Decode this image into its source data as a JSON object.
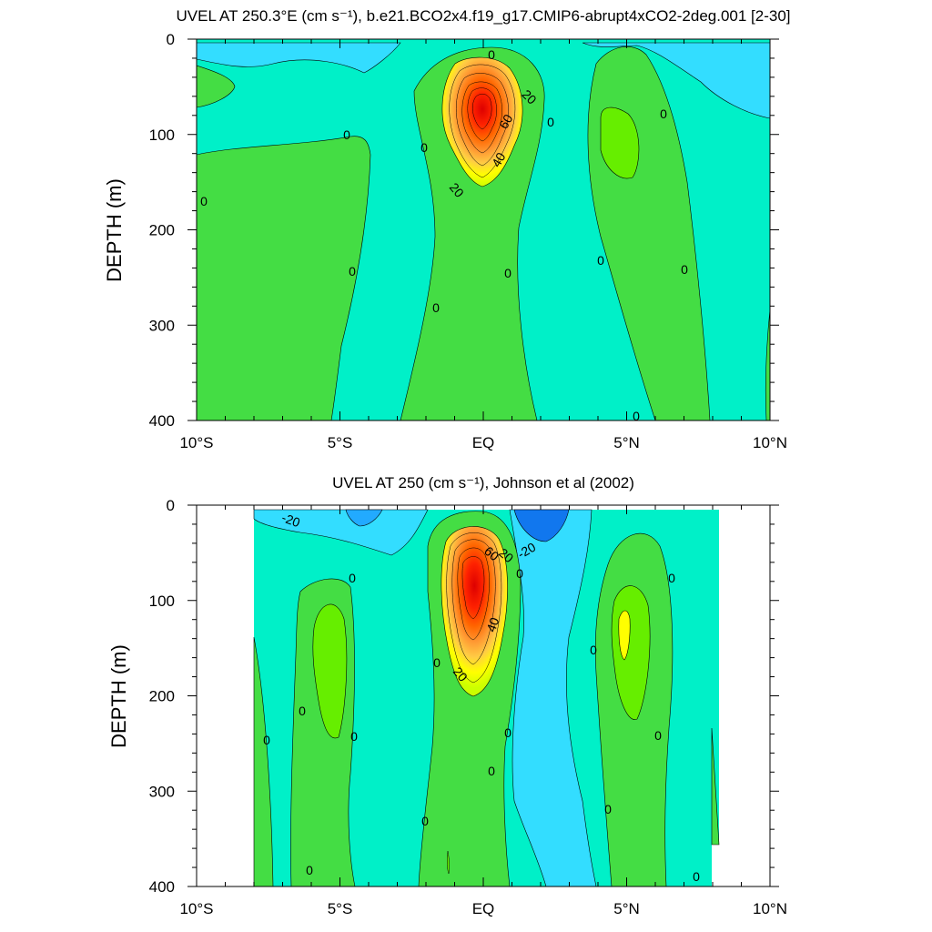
{
  "chart_data": [
    {
      "type": "contour",
      "title": "UVEL AT 250.3°E (cm s⁻¹), b.e21.BCO2x4.f19_g17.CMIP6-abrupt4xCO2-2deg.001 [2-30]",
      "ylabel": "DEPTH (m)",
      "xlabel": "",
      "xlim": [
        -10,
        10
      ],
      "ylim": [
        400,
        0
      ],
      "x_ticks": [
        {
          "value": -10,
          "label": "10°S"
        },
        {
          "value": -5,
          "label": "5°S"
        },
        {
          "value": 0,
          "label": "EQ"
        },
        {
          "value": 5,
          "label": "5°N"
        },
        {
          "value": 10,
          "label": "10°N"
        }
      ],
      "y_ticks": [
        {
          "value": 0,
          "label": "0"
        },
        {
          "value": 100,
          "label": "100"
        },
        {
          "value": 200,
          "label": "200"
        },
        {
          "value": 300,
          "label": "300"
        },
        {
          "value": 400,
          "label": "400"
        }
      ],
      "colors": {
        "negative_strong": "#33ddff",
        "negative_weak": "#00f0d0",
        "near_zero_positive": "#44dd44",
        "weak_positive": "#66ee00",
        "positive_20": "#ffff00",
        "positive_30": "#ffcc44",
        "positive_40": "#ff9933",
        "positive_60": "#ff4400",
        "max": "#ee0000"
      },
      "undercurrent_core": {
        "latitude": 0,
        "depth": 80,
        "max_value": 85
      },
      "contour_labels": [
        {
          "text": "0",
          "lat": 0.3,
          "depth": 15
        },
        {
          "text": "20",
          "lat": 1.5,
          "depth": 60
        },
        {
          "text": "60",
          "lat": 0.95,
          "depth": 85
        },
        {
          "text": "0",
          "lat": 2.4,
          "depth": 85
        },
        {
          "text": "40",
          "lat": 0.7,
          "depth": 125
        },
        {
          "text": "20",
          "lat": -1.0,
          "depth": 155
        },
        {
          "text": "0",
          "lat": -2.0,
          "depth": 115
        },
        {
          "text": "0",
          "lat": -4.9,
          "depth": 100
        },
        {
          "text": "0",
          "lat": -9.8,
          "depth": 170
        },
        {
          "text": "0",
          "lat": 6.2,
          "depth": 77
        },
        {
          "text": "0",
          "lat": -4.6,
          "depth": 240
        },
        {
          "text": "0",
          "lat": 0.9,
          "depth": 245
        },
        {
          "text": "0",
          "lat": 4.1,
          "depth": 232
        },
        {
          "text": "0",
          "lat": 7.0,
          "depth": 240
        },
        {
          "text": "0",
          "lat": -1.6,
          "depth": 280
        },
        {
          "text": "0",
          "lat": 5.3,
          "depth": 395
        }
      ]
    },
    {
      "type": "contour",
      "title": "UVEL AT 250 (cm s⁻¹), Johnson et al (2002)",
      "ylabel": "DEPTH (m)",
      "xlabel": "",
      "xlim": [
        -10,
        10
      ],
      "ylim": [
        400,
        0
      ],
      "x_ticks": [
        {
          "value": -10,
          "label": "10°S"
        },
        {
          "value": -5,
          "label": "5°S"
        },
        {
          "value": 0,
          "label": "EQ"
        },
        {
          "value": 5,
          "label": "5°N"
        },
        {
          "value": 10,
          "label": "10°N"
        }
      ],
      "y_ticks": [
        {
          "value": 0,
          "label": "0"
        },
        {
          "value": 100,
          "label": "100"
        },
        {
          "value": 200,
          "label": "200"
        },
        {
          "value": 300,
          "label": "300"
        },
        {
          "value": 400,
          "label": "400"
        }
      ],
      "data_extent": {
        "lat_min": -8,
        "lat_max": 8.2
      },
      "colors": {
        "negative_strong": "#0099ff",
        "negative_medium": "#33ccff",
        "negative_weak": "#00f0d0",
        "near_zero_positive": "#44dd44",
        "weak_positive": "#66ee00",
        "positive_20": "#ffff00",
        "positive_30": "#ffcc44",
        "positive_40": "#ff9933",
        "positive_60": "#ff4400",
        "max": "#ee0000"
      },
      "undercurrent_core": {
        "latitude": -0.3,
        "depth": 75,
        "max_value": 95
      },
      "contour_labels": [
        {
          "text": "-20",
          "lat": -6.7,
          "depth": 15
        },
        {
          "text": "-20",
          "lat": 1.6,
          "depth": 48
        },
        {
          "text": "60",
          "lat": 0.2,
          "depth": 50
        },
        {
          "text": "20",
          "lat": 0.7,
          "depth": 55
        },
        {
          "text": "0",
          "lat": 1.3,
          "depth": 72
        },
        {
          "text": "40",
          "lat": 0.4,
          "depth": 125
        },
        {
          "text": "20",
          "lat": -0.9,
          "depth": 183
        },
        {
          "text": "0",
          "lat": -1.6,
          "depth": 165
        },
        {
          "text": "0",
          "lat": -4.5,
          "depth": 75
        },
        {
          "text": "0",
          "lat": 3.9,
          "depth": 152
        },
        {
          "text": "0",
          "lat": 6.6,
          "depth": 75
        },
        {
          "text": "0",
          "lat": -6.2,
          "depth": 215
        },
        {
          "text": "0",
          "lat": -5.4,
          "depth": 242
        },
        {
          "text": "0",
          "lat": -7.4,
          "depth": 245
        },
        {
          "text": "0",
          "lat": 0.9,
          "depth": 238
        },
        {
          "text": "0",
          "lat": 0.3,
          "depth": 278
        },
        {
          "text": "0",
          "lat": 4.4,
          "depth": 320
        },
        {
          "text": "0",
          "lat": 6.3,
          "depth": 242
        },
        {
          "text": "0",
          "lat": -2.0,
          "depth": 330
        },
        {
          "text": "0",
          "lat": -5.8,
          "depth": 380
        },
        {
          "text": "0",
          "lat": 7.4,
          "depth": 385
        }
      ]
    }
  ]
}
